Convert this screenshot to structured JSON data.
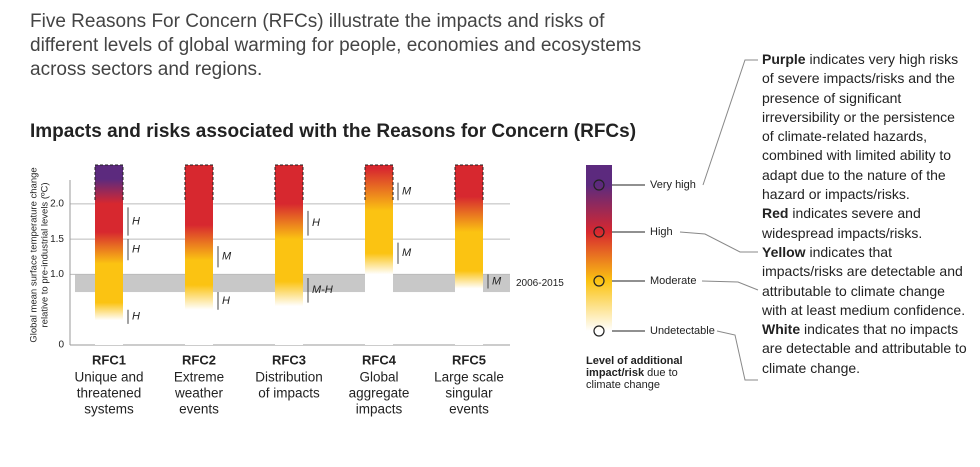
{
  "intro": [
    "Five Reasons For Concern (RFCs) illustrate the impacts and risks of",
    "different levels of global warming for people, economies and ecosystems",
    "across sectors and regions."
  ],
  "chart_data": {
    "type": "gradient-bar",
    "title": "Impacts and risks associated with the Reasons for Concern (RFCs)",
    "y_label": [
      "Global mean surface temperature change",
      "relative to pre-industrial levels (ºC)"
    ],
    "ylim": [
      0,
      2.55
    ],
    "yticks": [
      0,
      {
        "value": 1,
        "label": "1.0"
      },
      {
        "value": 1.5,
        "label": "1.5"
      },
      {
        "value": 2,
        "label": "2.0"
      }
    ],
    "band": {
      "label": "2006-2015",
      "range": [
        0.75,
        1.0
      ]
    },
    "levels": [
      {
        "label": "Very high",
        "color": "#5c2a7e"
      },
      {
        "label": "High",
        "color": "#d7282f"
      },
      {
        "label": "Moderate",
        "color": "#fbc312"
      },
      {
        "label": "Undetectable",
        "color": "#ffffff"
      }
    ],
    "legend_caption": {
      "bold": "Level of additional impact/risk",
      "text": "due to climate change"
    },
    "rfcs": [
      {
        "code": "RFC1",
        "name": [
          "Unique and",
          "threatened",
          "systems"
        ],
        "stops": [
          {
            "t": 0.35,
            "level": 3
          },
          {
            "t": 0.6,
            "level": 2
          },
          {
            "t": 1.15,
            "level": 2
          },
          {
            "t": 1.6,
            "level": 1
          },
          {
            "t": 2.0,
            "level": 1
          },
          {
            "t": 2.35,
            "level": 0
          }
        ],
        "confidence": [
          {
            "label": "H",
            "range": [
              1.55,
              1.95
            ]
          },
          {
            "label": "H",
            "range": [
              1.2,
              1.5
            ]
          },
          {
            "label": "H",
            "range": [
              0.3,
              0.5
            ]
          }
        ]
      },
      {
        "code": "RFC2",
        "name": [
          "Extreme",
          "weather",
          "events"
        ],
        "stops": [
          {
            "t": 0.5,
            "level": 3
          },
          {
            "t": 0.85,
            "level": 2
          },
          {
            "t": 1.2,
            "level": 2
          },
          {
            "t": 1.7,
            "level": 1
          }
        ],
        "confidence": [
          {
            "label": "M",
            "range": [
              1.1,
              1.4
            ]
          },
          {
            "label": "H",
            "range": [
              0.5,
              0.75
            ]
          }
        ]
      },
      {
        "code": "RFC3",
        "name": [
          "Distribution",
          "of impacts"
        ],
        "stops": [
          {
            "t": 0.55,
            "level": 3
          },
          {
            "t": 0.9,
            "level": 2
          },
          {
            "t": 1.5,
            "level": 2
          },
          {
            "t": 2.0,
            "level": 1
          }
        ],
        "confidence": [
          {
            "label": "H",
            "range": [
              1.55,
              1.9
            ]
          },
          {
            "label": "M-H",
            "range": [
              0.6,
              0.95
            ]
          }
        ]
      },
      {
        "code": "RFC4",
        "name": [
          "Global",
          "aggregate",
          "impacts"
        ],
        "stops": [
          {
            "t": 1.0,
            "level": 3
          },
          {
            "t": 1.3,
            "level": 2
          },
          {
            "t": 1.9,
            "level": 2
          },
          {
            "t": 2.5,
            "level": 1
          }
        ],
        "confidence": [
          {
            "label": "M",
            "range": [
              2.05,
              2.3
            ]
          },
          {
            "label": "M",
            "range": [
              1.15,
              1.45
            ]
          }
        ]
      },
      {
        "code": "RFC5",
        "name": [
          "Large scale",
          "singular",
          "events"
        ],
        "stops": [
          {
            "t": 0.8,
            "level": 3
          },
          {
            "t": 1.05,
            "level": 2
          },
          {
            "t": 1.6,
            "level": 2
          },
          {
            "t": 2.1,
            "level": 1
          }
        ],
        "confidence": [
          {
            "label": "M",
            "range": [
              0.8,
              1.0
            ]
          }
        ]
      }
    ]
  },
  "notes": [
    {
      "keyword": "Purple",
      "text": "indicates very high risks of severe impacts/risks and the presence of significant irreversibility or the persistence of climate-related hazards, combined with limited ability to adapt due to the nature of the hazard or impacts/risks."
    },
    {
      "keyword": "Red",
      "text": "indicates severe and widespread impacts/risks."
    },
    {
      "keyword": "Yellow",
      "text": "indicates that impacts/risks are detectable and attributable to climate change with at least medium confidence."
    },
    {
      "keyword": "White",
      "text": "indicates that no impacts are detectable and attributable to climate change."
    }
  ]
}
